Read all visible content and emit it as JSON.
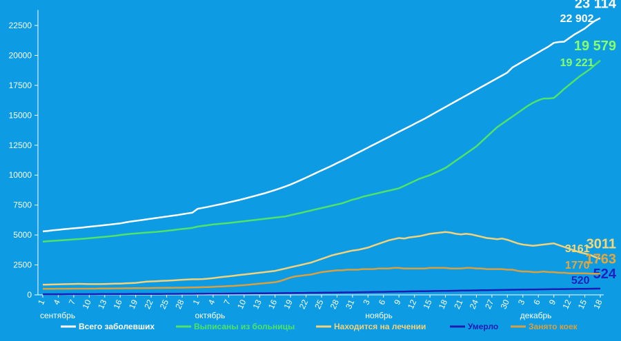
{
  "chart_data": {
    "type": "line",
    "categories": [
      "1",
      null,
      null,
      "4",
      null,
      null,
      "7",
      null,
      null,
      "10",
      null,
      null,
      "13",
      null,
      null,
      "16",
      null,
      null,
      "19",
      null,
      null,
      "22",
      null,
      null,
      "25",
      null,
      null,
      "28",
      null,
      null,
      "1",
      null,
      null,
      "4",
      null,
      null,
      "7",
      null,
      null,
      "10",
      null,
      null,
      "13",
      null,
      null,
      "16",
      null,
      null,
      "19",
      null,
      null,
      "22",
      null,
      null,
      "25",
      null,
      null,
      "28",
      null,
      null,
      "31",
      null,
      null,
      "3",
      null,
      null,
      "6",
      null,
      null,
      "9",
      null,
      null,
      "12",
      null,
      null,
      "15",
      null,
      null,
      "18",
      null,
      null,
      "21",
      null,
      null,
      "24",
      null,
      null,
      "27",
      null,
      null,
      "30",
      null,
      null,
      "3",
      null,
      null,
      "6",
      null,
      null,
      "9",
      null,
      null,
      "12",
      null,
      null,
      "15",
      null,
      null,
      "18"
    ],
    "months": [
      "сентябрь",
      "октябрь",
      "ноябрь",
      "декабрь"
    ],
    "ylim": [
      0,
      23800
    ],
    "yticks": [
      0,
      2500,
      5000,
      7500,
      10000,
      12500,
      15000,
      17500,
      20000,
      22500
    ],
    "grid": false,
    "legend": "bottom",
    "series": [
      {
        "name": "Всего заболевших",
        "color": "#ffffff",
        "label_color": "#ffffff",
        "values": [
          5300,
          5340,
          5390,
          5430,
          5480,
          5520,
          5560,
          5600,
          5640,
          5690,
          5730,
          5780,
          5830,
          5870,
          5920,
          5970,
          6050,
          6120,
          6180,
          6240,
          6300,
          6360,
          6420,
          6480,
          6540,
          6600,
          6660,
          6730,
          6800,
          6870,
          7190,
          7270,
          7350,
          7440,
          7530,
          7620,
          7720,
          7820,
          7920,
          8030,
          8140,
          8250,
          8370,
          8490,
          8620,
          8760,
          8900,
          9050,
          9220,
          9400,
          9590,
          9790,
          9990,
          10190,
          10390,
          10590,
          10790,
          11000,
          11210,
          11420,
          11640,
          11860,
          12080,
          12300,
          12520,
          12740,
          12960,
          13180,
          13400,
          13620,
          13840,
          14060,
          14280,
          14500,
          14720,
          14960,
          15210,
          15450,
          15690,
          15930,
          16170,
          16410,
          16650,
          16890,
          17130,
          17370,
          17610,
          17850,
          18090,
          18330,
          18570,
          19000,
          19250,
          19500,
          19750,
          20000,
          20250,
          20500,
          20750,
          21050,
          21120,
          21150,
          21450,
          21750,
          22000,
          22250,
          22600,
          22902,
          23114
        ],
        "value_labels": [
          null,
          null,
          null,
          null,
          null,
          null,
          null,
          null,
          null,
          null,
          null,
          null,
          null,
          null,
          null,
          null,
          null,
          null,
          null,
          null,
          null,
          null,
          null,
          null,
          null,
          null,
          null,
          null,
          null,
          null,
          null,
          null,
          null,
          null,
          null,
          null,
          null,
          null,
          null,
          null,
          null,
          null,
          null,
          null,
          null,
          null,
          null,
          null,
          null,
          null,
          null,
          null,
          null,
          null,
          null,
          null,
          null,
          null,
          null,
          null,
          null,
          null,
          null,
          null,
          null,
          null,
          null,
          null,
          null,
          null,
          null,
          null,
          null,
          null,
          null,
          null,
          null,
          null,
          null,
          null,
          null,
          null,
          null,
          null,
          null,
          null,
          null,
          null,
          null,
          null,
          null,
          null,
          null,
          null,
          null,
          null,
          null,
          null,
          null,
          null,
          null,
          null,
          null,
          null,
          null,
          null,
          null,
          "22 902",
          "23 114"
        ]
      },
      {
        "name": "Выписаны из больницы",
        "color": "#4fe36a",
        "label_color": "#86ff6e",
        "values": [
          4450,
          4480,
          4510,
          4540,
          4570,
          4600,
          4630,
          4660,
          4690,
          4730,
          4770,
          4810,
          4850,
          4890,
          4930,
          5000,
          5050,
          5090,
          5130,
          5170,
          5200,
          5230,
          5260,
          5300,
          5350,
          5400,
          5450,
          5500,
          5550,
          5600,
          5700,
          5760,
          5820,
          5880,
          5920,
          5960,
          6000,
          6050,
          6100,
          6150,
          6200,
          6250,
          6300,
          6350,
          6400,
          6450,
          6500,
          6550,
          6650,
          6750,
          6850,
          6950,
          7050,
          7150,
          7250,
          7350,
          7450,
          7550,
          7650,
          7800,
          7950,
          8050,
          8200,
          8300,
          8400,
          8500,
          8600,
          8700,
          8800,
          8900,
          9100,
          9300,
          9500,
          9700,
          9850,
          10000,
          10200,
          10400,
          10600,
          10900,
          11200,
          11500,
          11800,
          12100,
          12400,
          12800,
          13200,
          13600,
          14000,
          14300,
          14600,
          14900,
          15200,
          15500,
          15800,
          16050,
          16250,
          16400,
          16400,
          16450,
          16800,
          17200,
          17550,
          17900,
          18250,
          18550,
          18850,
          19221,
          19579
        ],
        "value_labels": [
          null,
          null,
          null,
          null,
          null,
          null,
          null,
          null,
          null,
          null,
          null,
          null,
          null,
          null,
          null,
          null,
          null,
          null,
          null,
          null,
          null,
          null,
          null,
          null,
          null,
          null,
          null,
          null,
          null,
          null,
          null,
          null,
          null,
          null,
          null,
          null,
          null,
          null,
          null,
          null,
          null,
          null,
          null,
          null,
          null,
          null,
          null,
          null,
          null,
          null,
          null,
          null,
          null,
          null,
          null,
          null,
          null,
          null,
          null,
          null,
          null,
          null,
          null,
          null,
          null,
          null,
          null,
          null,
          null,
          null,
          null,
          null,
          null,
          null,
          null,
          null,
          null,
          null,
          null,
          null,
          null,
          null,
          null,
          null,
          null,
          null,
          null,
          null,
          null,
          null,
          null,
          null,
          null,
          null,
          null,
          null,
          null,
          null,
          null,
          null,
          null,
          null,
          null,
          null,
          null,
          null,
          null,
          "19 221",
          "19 579"
        ]
      },
      {
        "name": "Находится на лечении",
        "color": "#f2d27a",
        "label_color": "#f5d77a",
        "values": [
          850,
          860,
          870,
          880,
          890,
          900,
          910,
          920,
          910,
          900,
          900,
          900,
          910,
          920,
          930,
          940,
          960,
          980,
          1000,
          1050,
          1100,
          1120,
          1140,
          1160,
          1180,
          1200,
          1230,
          1260,
          1280,
          1300,
          1300,
          1320,
          1350,
          1400,
          1450,
          1500,
          1550,
          1600,
          1650,
          1700,
          1750,
          1800,
          1850,
          1900,
          1950,
          2000,
          2100,
          2200,
          2300,
          2400,
          2500,
          2600,
          2700,
          2850,
          3000,
          3150,
          3300,
          3400,
          3500,
          3600,
          3700,
          3750,
          3850,
          3950,
          4100,
          4250,
          4400,
          4550,
          4650,
          4750,
          4700,
          4800,
          4850,
          4900,
          5000,
          5100,
          5150,
          5200,
          5250,
          5200,
          5100,
          5050,
          5100,
          5050,
          4950,
          4850,
          4750,
          4700,
          4650,
          4700,
          4600,
          4450,
          4300,
          4200,
          4150,
          4100,
          4150,
          4200,
          4250,
          4300,
          4150,
          4000,
          3850,
          3700,
          3550,
          3450,
          3350,
          3161,
          3011
        ]
      },
      {
        "name": "Умерло",
        "color": "#1c1cb5",
        "label_color": "#2020c0",
        "values": [
          50,
          51,
          52,
          53,
          54,
          55,
          56,
          57,
          58,
          59,
          60,
          61,
          62,
          63,
          64,
          65,
          66,
          67,
          68,
          69,
          70,
          72,
          74,
          76,
          78,
          80,
          82,
          84,
          86,
          88,
          90,
          93,
          96,
          99,
          102,
          105,
          108,
          111,
          114,
          117,
          120,
          124,
          128,
          132,
          136,
          140,
          144,
          148,
          152,
          156,
          160,
          165,
          170,
          175,
          180,
          185,
          190,
          195,
          200,
          205,
          210,
          215,
          222,
          229,
          236,
          243,
          250,
          257,
          264,
          271,
          278,
          285,
          292,
          299,
          306,
          313,
          320,
          327,
          334,
          341,
          348,
          355,
          362,
          369,
          376,
          383,
          390,
          397,
          404,
          411,
          418,
          425,
          431,
          437,
          443,
          449,
          455,
          461,
          467,
          473,
          479,
          485,
          491,
          497,
          503,
          509,
          515,
          520,
          524
        ]
      },
      {
        "name": "Занято коек",
        "color": "#d9a040",
        "label_color": "#e8a53a",
        "values": [
          500,
          500,
          500,
          510,
          510,
          510,
          520,
          520,
          520,
          520,
          520,
          530,
          530,
          530,
          540,
          540,
          550,
          550,
          560,
          560,
          570,
          570,
          580,
          580,
          590,
          590,
          600,
          600,
          610,
          620,
          630,
          640,
          650,
          670,
          690,
          710,
          730,
          750,
          780,
          810,
          850,
          890,
          930,
          970,
          1010,
          1060,
          1150,
          1300,
          1450,
          1550,
          1600,
          1650,
          1700,
          1800,
          1900,
          1950,
          2000,
          2050,
          2050,
          2100,
          2100,
          2100,
          2150,
          2150,
          2150,
          2200,
          2200,
          2200,
          2250,
          2250,
          2200,
          2200,
          2200,
          2200,
          2200,
          2250,
          2250,
          2250,
          2250,
          2200,
          2200,
          2200,
          2250,
          2250,
          2200,
          2200,
          2150,
          2150,
          2150,
          2150,
          2100,
          2100,
          2000,
          1950,
          1950,
          1900,
          1900,
          1950,
          1900,
          1900,
          1850,
          1850,
          1800,
          1800,
          1800,
          1800,
          1780,
          1770,
          1763
        ]
      }
    ]
  }
}
